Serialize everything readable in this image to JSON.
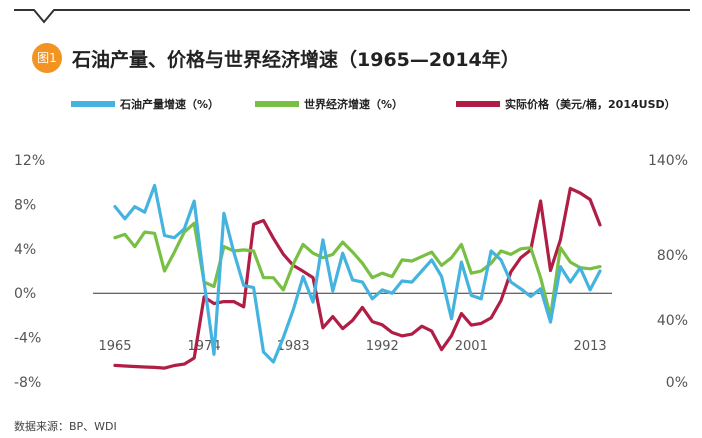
{
  "header": {
    "badge": "图1",
    "title": "石油产量、价格与世界经济增速（1965—2014年）"
  },
  "source": "数据来源：BP、WDI",
  "colors": {
    "oil_production": "#45b3e0",
    "world_economy": "#77c043",
    "real_price": "#b01e45",
    "badge": "#f39322"
  },
  "chart_data": {
    "type": "line",
    "x": [
      1965,
      1966,
      1967,
      1968,
      1969,
      1970,
      1971,
      1972,
      1973,
      1974,
      1975,
      1976,
      1977,
      1978,
      1979,
      1980,
      1981,
      1982,
      1983,
      1984,
      1985,
      1986,
      1987,
      1988,
      1989,
      1990,
      1991,
      1992,
      1993,
      1994,
      1995,
      1996,
      1997,
      1998,
      1999,
      2000,
      2001,
      2002,
      2003,
      2004,
      2005,
      2006,
      2007,
      2008,
      2009,
      2010,
      2011,
      2012,
      2013,
      2014
    ],
    "x_tick_labels": [
      "1965",
      "1974",
      "1983",
      "1992",
      "2001",
      "2013"
    ],
    "x_tick_values": [
      1965,
      1974,
      1983,
      1992,
      2001,
      2013
    ],
    "y_left": {
      "ticks": [
        "12%",
        "8%",
        "4%",
        "0%",
        "-4%",
        "-8%"
      ],
      "range": [
        -8,
        12
      ]
    },
    "y_right": {
      "ticks": [
        "140%",
        "80%",
        "40%",
        "0%"
      ]
    },
    "series": [
      {
        "name": "石油产量增速（%）",
        "axis": "left",
        "values": [
          7.8,
          6.7,
          7.8,
          7.3,
          9.7,
          5.2,
          5.0,
          5.8,
          8.3,
          1.0,
          -5.5,
          7.2,
          3.7,
          0.7,
          0.5,
          -5.3,
          -6.2,
          -4.0,
          -1.5,
          1.5,
          -0.8,
          4.8,
          0.2,
          3.6,
          1.2,
          1.0,
          -0.5,
          0.3,
          0.0,
          1.1,
          1.0,
          2.0,
          3.0,
          1.5,
          -2.3,
          2.8,
          -0.2,
          -0.5,
          3.8,
          3.0,
          1.0,
          0.4,
          -0.3,
          0.4,
          -2.6,
          2.4,
          1.0,
          2.3,
          0.3,
          2.0
        ]
      },
      {
        "name": "世界经济增速（%）",
        "axis": "left",
        "values": [
          5.0,
          5.3,
          4.2,
          5.5,
          5.4,
          2.0,
          3.7,
          5.5,
          6.3,
          1.0,
          0.6,
          4.2,
          3.8,
          3.9,
          3.8,
          1.4,
          1.4,
          0.3,
          2.6,
          4.4,
          3.6,
          3.2,
          3.5,
          4.6,
          3.7,
          2.7,
          1.4,
          1.8,
          1.5,
          3.0,
          2.9,
          3.3,
          3.7,
          2.5,
          3.2,
          4.4,
          1.8,
          2.0,
          2.7,
          3.8,
          3.5,
          4.0,
          4.1,
          1.4,
          -2.1,
          4.1,
          2.8,
          2.3,
          2.2,
          2.4
        ]
      },
      {
        "name": "实际价格（美元/桶，2014USD）",
        "axis": "right",
        "values": [
          9.9,
          9.5,
          9.2,
          8.9,
          8.6,
          8.2,
          9.8,
          10.7,
          14.6,
          53.3,
          49.0,
          50.3,
          50.3,
          47.0,
          99.3,
          101.7,
          90.4,
          80.3,
          73.2,
          69.5,
          65.5,
          33.7,
          40.8,
          33.2,
          38.4,
          46.6,
          37.6,
          35.6,
          30.7,
          28.6,
          29.7,
          34.7,
          31.6,
          19.9,
          28.7,
          42.7,
          35.4,
          36.5,
          40.0,
          51.0,
          69.2,
          78.1,
          83.0,
          114.0,
          70.0,
          89.4,
          122.0,
          119.1,
          115.0,
          98.9
        ]
      }
    ]
  }
}
